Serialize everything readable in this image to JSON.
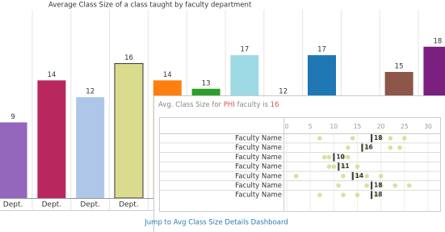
{
  "chart_data": {
    "type": "bar",
    "title": "Average Class Size of a class taught by faculty department",
    "categories": [
      "Dept.",
      "Dept.",
      "Dept.",
      "Dept.",
      null,
      null,
      null,
      null,
      null,
      null,
      null,
      null
    ],
    "values": [
      9,
      14,
      12,
      16,
      14,
      13,
      17,
      12,
      17,
      null,
      15,
      18
    ],
    "colors": [
      "#9467bd",
      "#b8285f",
      "#aec7e8",
      "#dbdb8d",
      "#ff7f0e",
      "#2ca02c",
      "#9edae5",
      "#17becf",
      "#1f77b4",
      "#c7c7c7",
      "#8c564b",
      "#7b1f80"
    ],
    "highlight": 3
  },
  "tooltip": {
    "text": [
      "Avg. Class Size for ",
      "PHI",
      " faculty is ",
      "16"
    ],
    "xlim": [
      0,
      30
    ],
    "xticks": [
      0,
      5,
      10,
      15,
      20,
      25,
      30
    ],
    "rows": [
      {
        "name": "Faculty Name",
        "median": 18,
        "dots": [
          7,
          14,
          20,
          22,
          25
        ]
      },
      {
        "name": "Faculty Name",
        "median": 16,
        "dots": [
          13,
          17,
          22,
          24
        ]
      },
      {
        "name": "Faculty Name",
        "median": 10,
        "dots": [
          8,
          9,
          12,
          13
        ]
      },
      {
        "name": "Faculty Name",
        "median": 11,
        "dots": [
          9,
          10,
          12,
          15
        ]
      },
      {
        "name": "Faculty Name",
        "median": 14,
        "dots": [
          2,
          12,
          15,
          17,
          20
        ]
      },
      {
        "name": "Faculty Name",
        "median": 18,
        "dots": [
          11,
          17,
          20,
          23,
          26
        ]
      },
      {
        "name": "Faculty Name",
        "median": 18,
        "dots": [
          7,
          12,
          15,
          19
        ]
      }
    ],
    "link": "Jump to Avg Class Size Details Dashboard"
  }
}
